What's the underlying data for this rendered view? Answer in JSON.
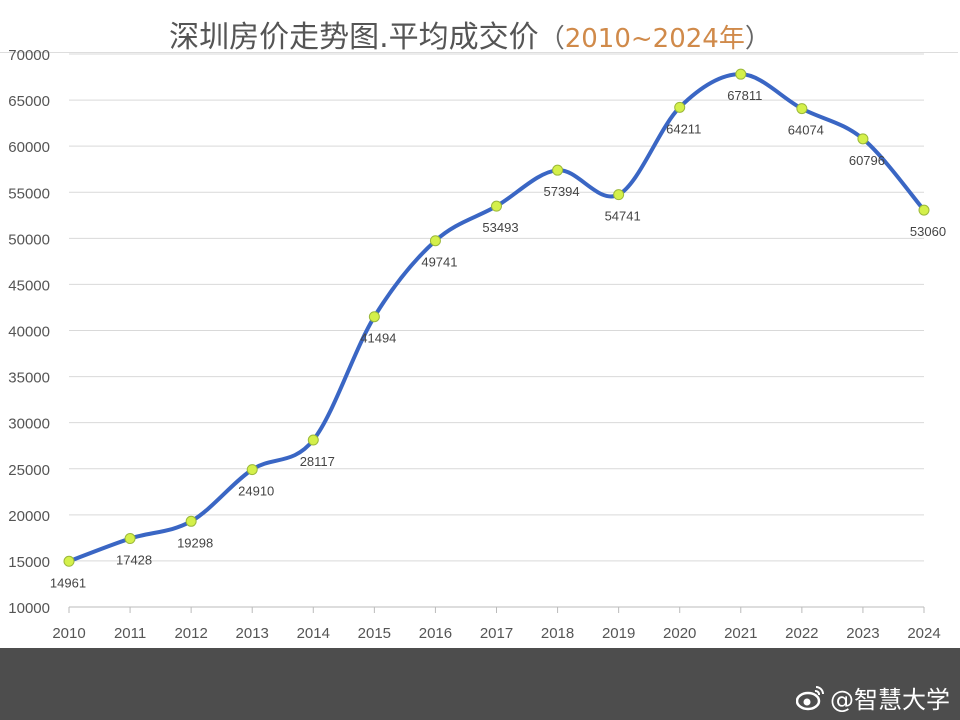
{
  "chart_data": {
    "type": "line",
    "title": "深圳房价走势图.平均成交价",
    "subtitle": "2010~2024年",
    "xlabel": "",
    "ylabel": "",
    "x": [
      "2010",
      "2011",
      "2012",
      "2013",
      "2014",
      "2015",
      "2016",
      "2017",
      "2018",
      "2019",
      "2020",
      "2021",
      "2022",
      "2023",
      "2024"
    ],
    "series": [
      {
        "name": "平均成交价",
        "values": [
          14961,
          17428,
          19298,
          24910,
          28117,
          41494,
          49741,
          53493,
          57394,
          54741,
          64211,
          67811,
          64074,
          60796,
          53060
        ]
      }
    ],
    "ylim": [
      10000,
      70000
    ],
    "yticks": [
      10000,
      15000,
      20000,
      25000,
      30000,
      35000,
      40000,
      45000,
      50000,
      55000,
      60000,
      65000,
      70000
    ],
    "grid": true,
    "colors": {
      "line": "#3a66c4",
      "marker": "#d4f04a",
      "marker_edge": "#9bb83a",
      "grid": "#d9d9d9"
    }
  },
  "watermark": "@智慧大学"
}
